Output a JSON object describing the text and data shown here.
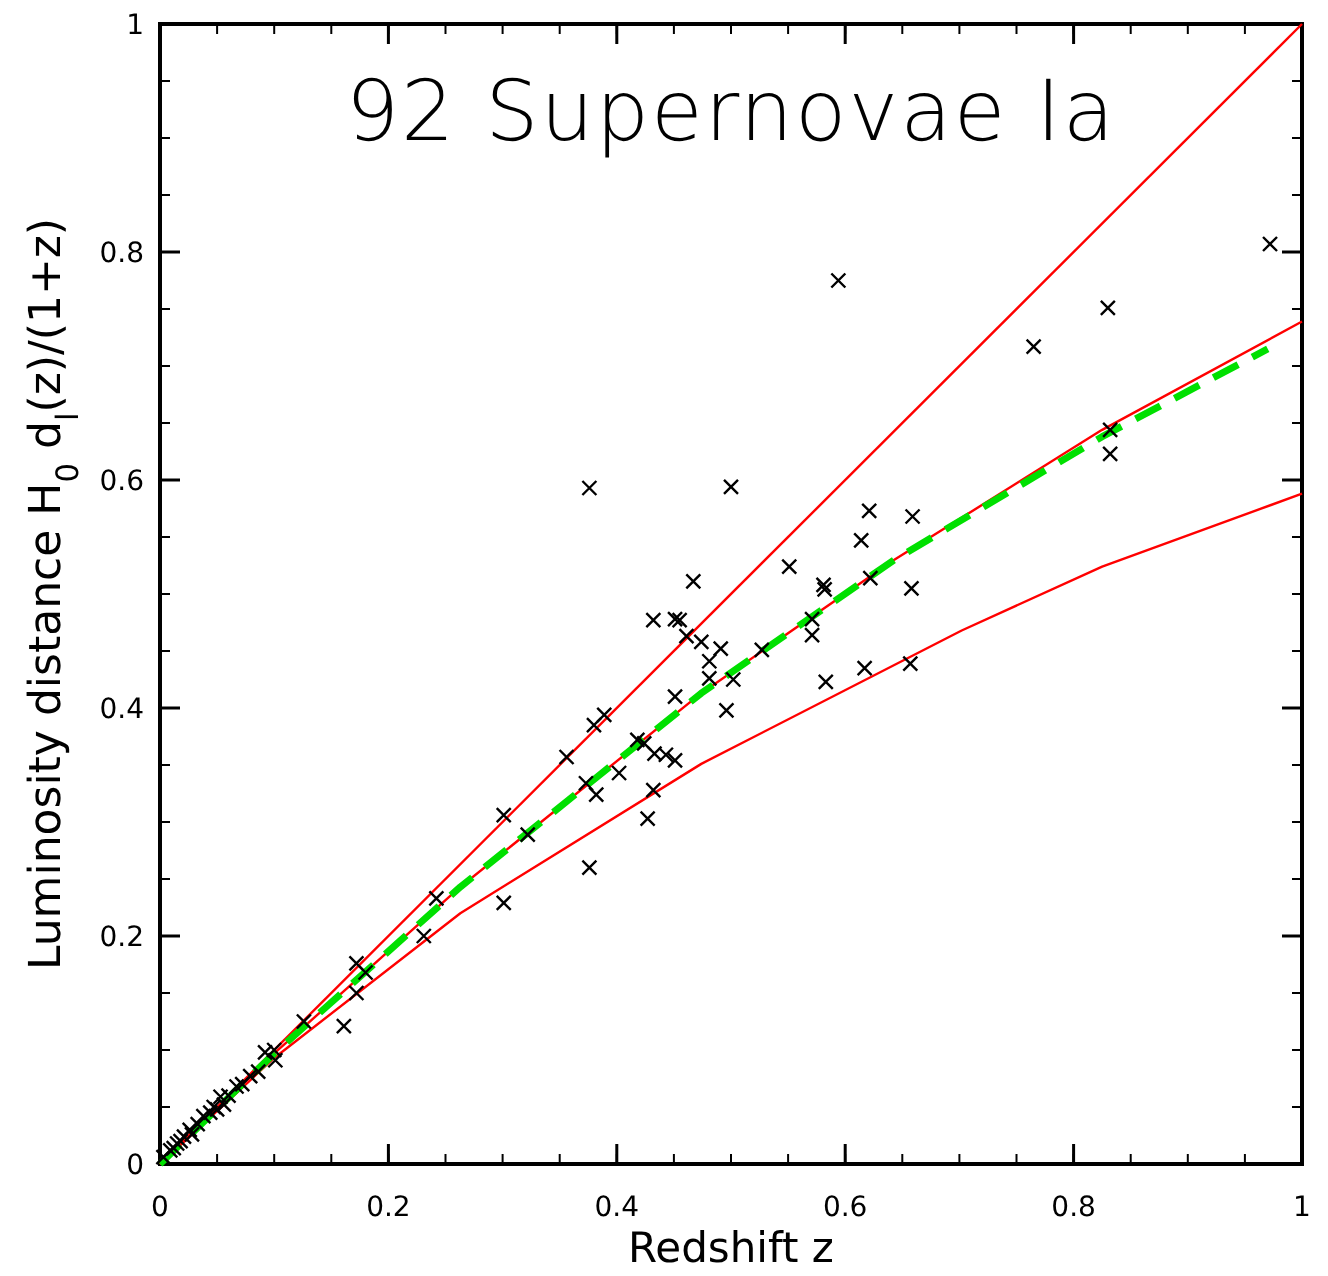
{
  "chart_data": {
    "type": "scatter",
    "title": "92 Supernovae Ia",
    "xlabel": "Redshift z",
    "ylabel": "Luminosity distance H$_{0}$ d$_{l}$(z)/(1+z)",
    "xlim": [
      0,
      1
    ],
    "ylim": [
      0,
      1
    ],
    "xticks": [
      0,
      0.2,
      0.4,
      0.6,
      0.8,
      1
    ],
    "yticks": [
      0,
      0.2,
      0.4,
      0.6,
      0.8,
      1
    ],
    "grid": false,
    "series": [
      {
        "type": "line",
        "color": "#ff0000",
        "line_style": "solid",
        "x": [
          0,
          1
        ],
        "values": [
          0,
          1
        ]
      },
      {
        "type": "line",
        "color": "#ff0000",
        "line_style": "solid",
        "x": [
          0,
          0.1,
          0.263,
          0.474,
          0.643,
          0.825,
          1
        ],
        "values": [
          0,
          0.097,
          0.243,
          0.413,
          0.53,
          0.644,
          0.739
        ]
      },
      {
        "type": "line",
        "color": "#ff0000",
        "line_style": "solid",
        "x": [
          0,
          0.1,
          0.263,
          0.474,
          0.702,
          0.825,
          1
        ],
        "values": [
          0,
          0.093,
          0.22,
          0.351,
          0.468,
          0.524,
          0.588
        ]
      },
      {
        "type": "line",
        "color": "#00e000",
        "line_style": "dashed",
        "x": [
          0,
          0.1,
          0.263,
          0.474,
          0.643,
          0.825,
          0.97
        ],
        "values": [
          0,
          0.097,
          0.243,
          0.413,
          0.53,
          0.638,
          0.715
        ]
      },
      {
        "color": "#000000",
        "marker": "cross",
        "x": [
          0.301,
          0.322,
          0.242,
          0.301,
          0.231,
          0.172,
          0.18,
          0.172,
          0.161,
          0.126,
          0.092,
          0.101,
          0.086,
          0.079,
          0.067,
          0.053,
          0.047,
          0.038,
          0.026,
          0.021,
          0.015,
          0.009,
          0.003,
          0.044,
          0.06,
          0.072,
          0.1,
          0.05,
          0.033,
          0.012,
          0.018,
          0.056,
          0.028,
          0.376,
          0.356,
          0.38,
          0.389,
          0.373,
          0.382,
          0.402,
          0.418,
          0.424,
          0.433,
          0.443,
          0.451,
          0.432,
          0.427,
          0.451,
          0.432,
          0.451,
          0.455,
          0.467,
          0.461,
          0.474,
          0.491,
          0.481,
          0.481,
          0.502,
          0.496,
          0.527,
          0.571,
          0.571,
          0.581,
          0.582,
          0.551,
          0.622,
          0.658,
          0.583,
          0.617,
          0.657,
          0.594,
          0.5,
          0.376,
          0.614,
          0.621,
          0.659,
          0.765,
          0.83,
          0.832,
          0.832,
          0.972
        ],
        "values": [
          0.306,
          0.289,
          0.233,
          0.229,
          0.2,
          0.176,
          0.168,
          0.15,
          0.121,
          0.125,
          0.098,
          0.091,
          0.081,
          0.077,
          0.068,
          0.059,
          0.05,
          0.042,
          0.03,
          0.024,
          0.018,
          0.012,
          0.006,
          0.045,
          0.06,
          0.07,
          0.1,
          0.048,
          0.035,
          0.014,
          0.02,
          0.052,
          0.026,
          0.26,
          0.357,
          0.385,
          0.394,
          0.334,
          0.324,
          0.343,
          0.372,
          0.369,
          0.36,
          0.359,
          0.354,
          0.328,
          0.303,
          0.41,
          0.477,
          0.478,
          0.477,
          0.511,
          0.463,
          0.458,
          0.452,
          0.441,
          0.426,
          0.425,
          0.398,
          0.451,
          0.478,
          0.464,
          0.508,
          0.504,
          0.524,
          0.514,
          0.505,
          0.423,
          0.435,
          0.439,
          0.775,
          0.594,
          0.593,
          0.547,
          0.573,
          0.568,
          0.717,
          0.751,
          0.644,
          0.623,
          0.807
        ]
      }
    ]
  }
}
